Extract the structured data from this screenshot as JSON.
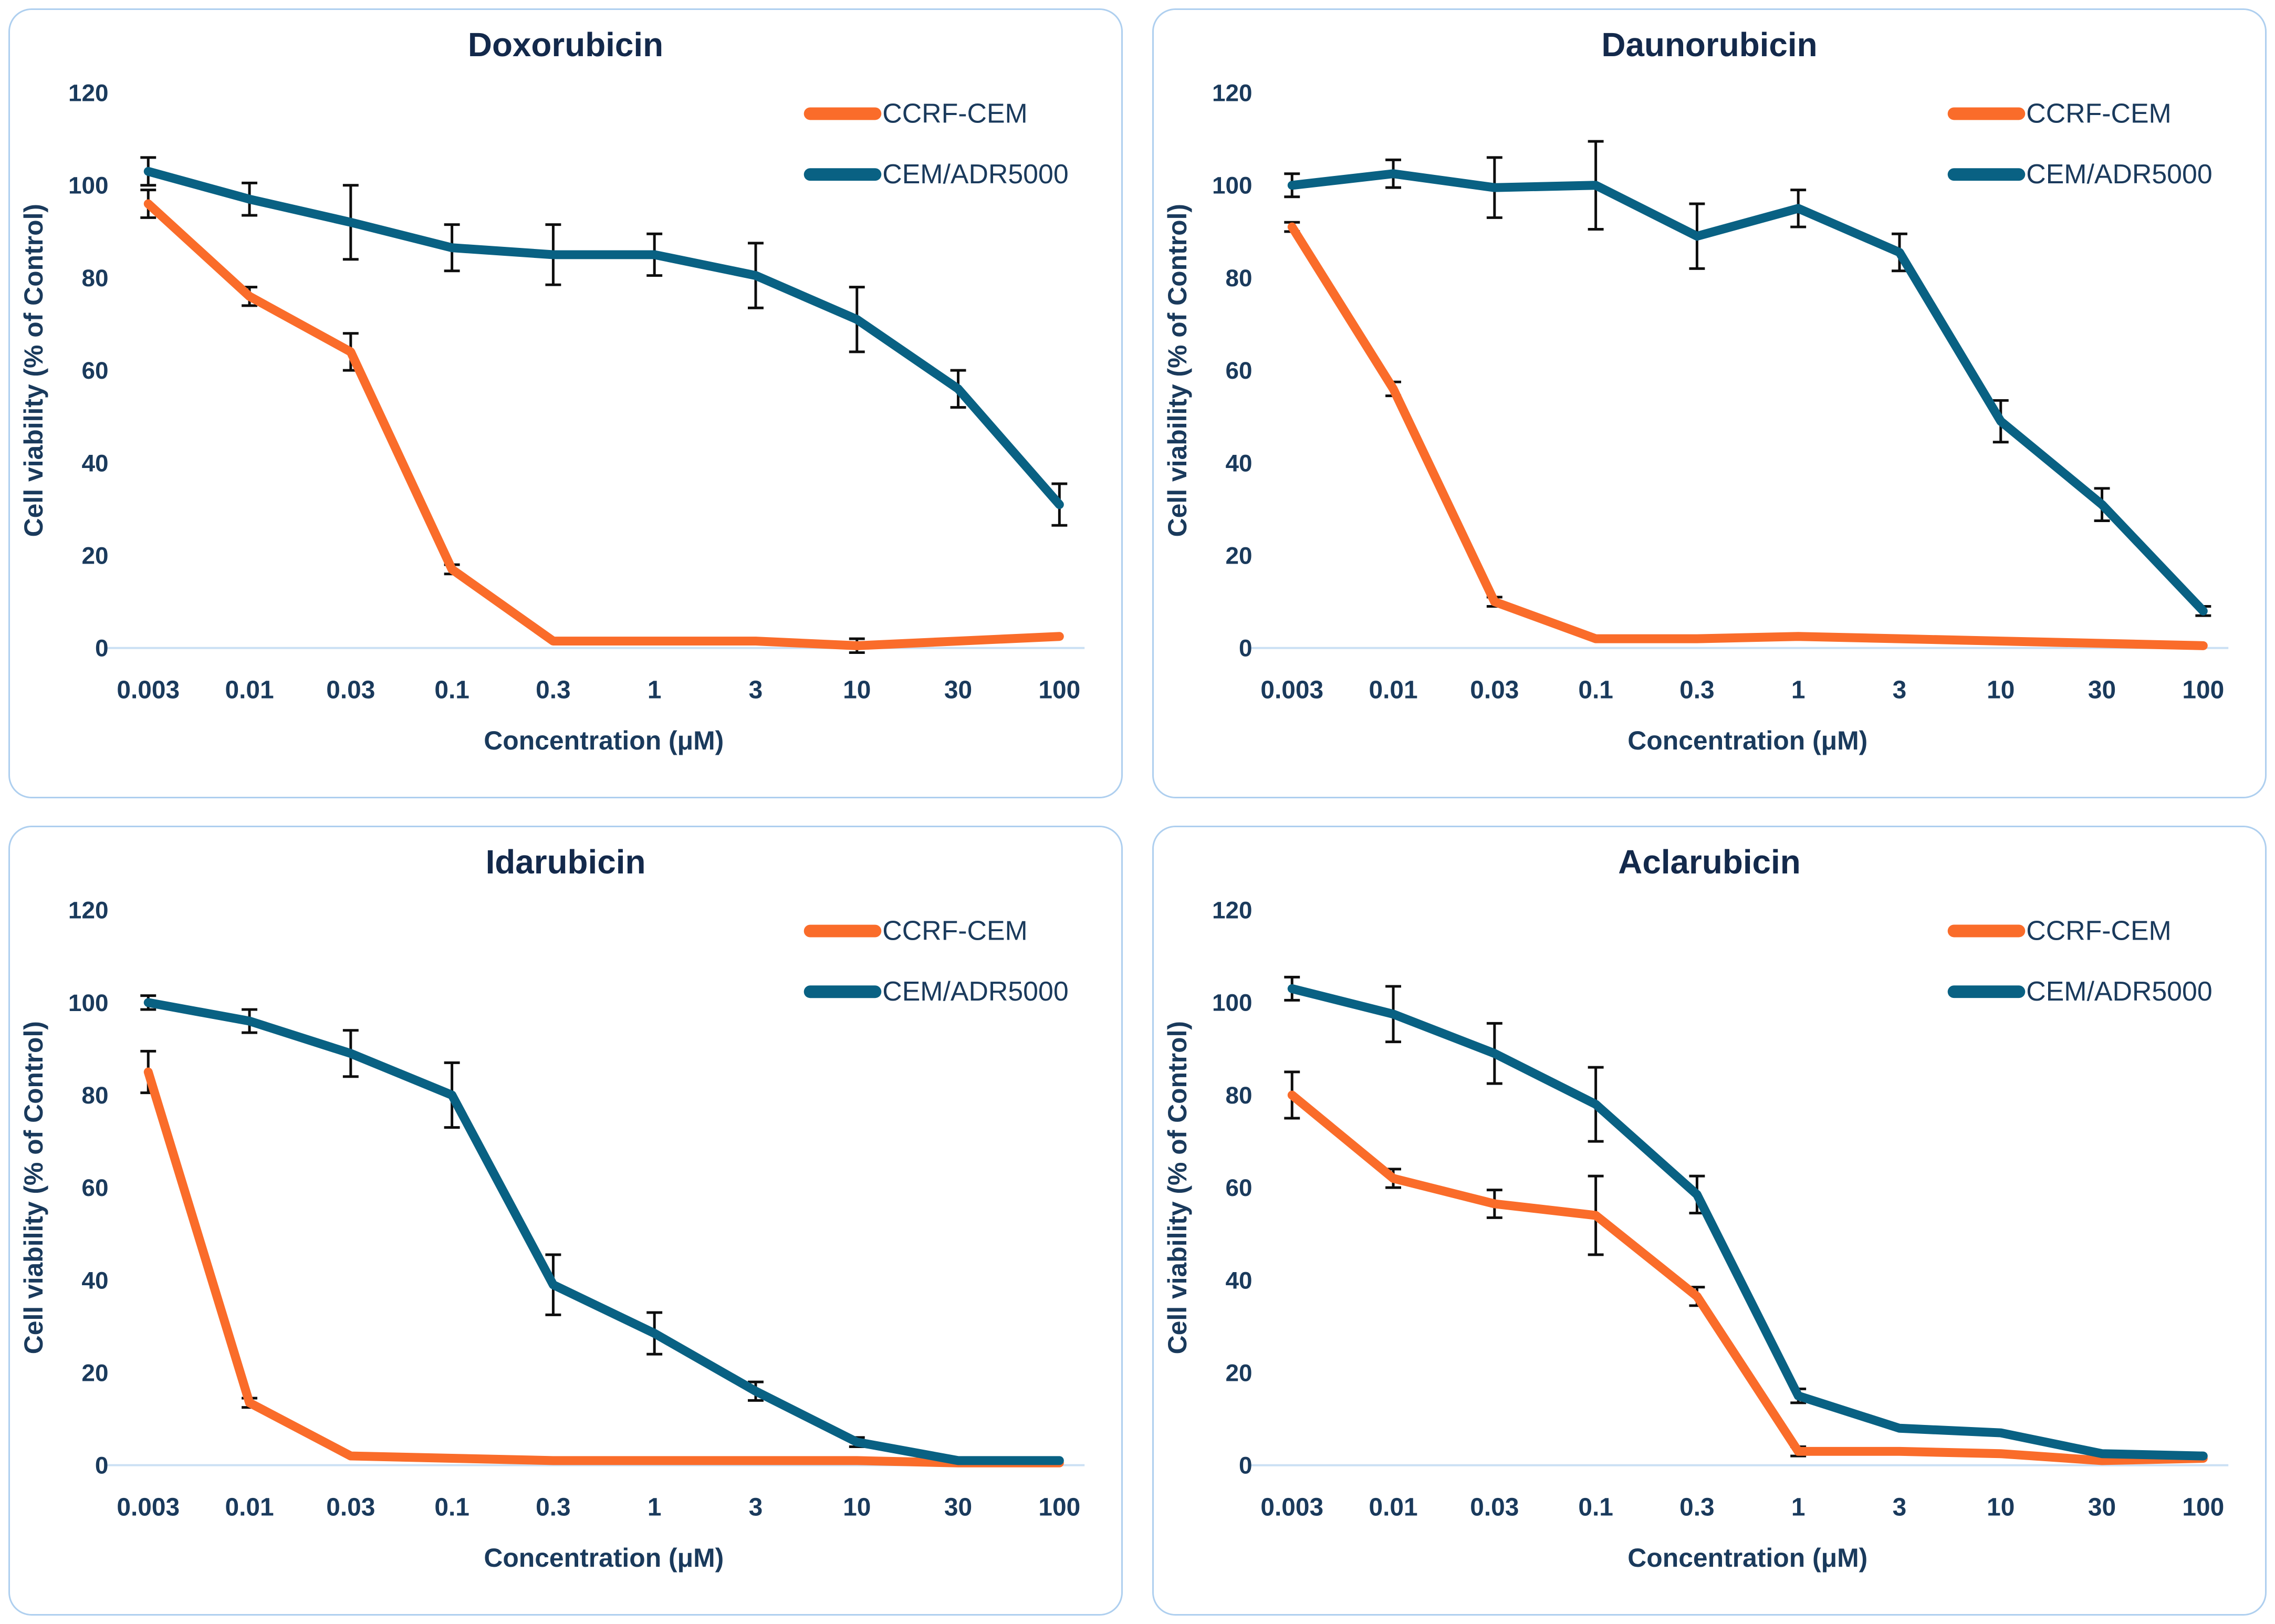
{
  "style": {
    "page_background": "#FFFFFF",
    "panel_background": "#FFFFFF",
    "panel_border_color": "#AECFEF",
    "text_color": "#1A3A5C",
    "title_color": "#13294B",
    "baseline_color": "#CBE0F4",
    "error_color": "#0D0D0D",
    "ccrf_color": "#FA6C2A",
    "adr_color": "#096183"
  },
  "chart_data": [
    {
      "type": "line",
      "title": "Doxorubicin",
      "xlabel": "Concentration (μM)",
      "ylabel": "Cell viability (% of Control)",
      "x_scale": "log-categorical",
      "x_categories": [
        "0.003",
        "0.01",
        "0.03",
        "0.1",
        "0.3",
        "1",
        "3",
        "10",
        "30",
        "100"
      ],
      "ylim": [
        0,
        120
      ],
      "y_ticks": [
        0,
        20,
        40,
        60,
        80,
        100,
        120
      ],
      "grid": false,
      "legend_position": "top-right",
      "series": [
        {
          "name": "CCRF-CEM",
          "color": "#FA6C2A",
          "values": [
            96,
            76,
            64,
            17,
            1.5,
            1.5,
            1.5,
            0.5,
            1.5,
            2.5
          ],
          "errors": [
            3,
            2,
            4,
            1,
            0,
            0,
            0,
            1.5,
            0,
            0
          ]
        },
        {
          "name": "CEM/ADR5000",
          "color": "#096183",
          "values": [
            103,
            97,
            92,
            86.5,
            85,
            85,
            80.5,
            71,
            56,
            31
          ],
          "errors": [
            3,
            3.5,
            8,
            5,
            6.5,
            4.5,
            7,
            7,
            4,
            4.5
          ]
        }
      ]
    },
    {
      "type": "line",
      "title": "Daunorubicin",
      "xlabel": "Concentration (μM)",
      "ylabel": "Cell viability (% of Control)",
      "x_scale": "log-categorical",
      "x_categories": [
        "0.003",
        "0.01",
        "0.03",
        "0.1",
        "0.3",
        "1",
        "3",
        "10",
        "30",
        "100"
      ],
      "ylim": [
        0,
        120
      ],
      "y_ticks": [
        0,
        20,
        40,
        60,
        80,
        100,
        120
      ],
      "grid": false,
      "legend_position": "top-right",
      "series": [
        {
          "name": "CCRF-CEM",
          "color": "#FA6C2A",
          "values": [
            91,
            56,
            10,
            2,
            2,
            2.5,
            2,
            1.5,
            1,
            0.5
          ],
          "errors": [
            1,
            1.5,
            1,
            0,
            0,
            0,
            0,
            0,
            0,
            0
          ]
        },
        {
          "name": "CEM/ADR5000",
          "color": "#096183",
          "values": [
            100,
            102.5,
            99.5,
            100,
            89,
            95,
            85.5,
            49,
            31,
            8
          ],
          "errors": [
            2.5,
            3,
            6.5,
            9.5,
            7,
            4,
            4,
            4.5,
            3.5,
            1
          ]
        }
      ]
    },
    {
      "type": "line",
      "title": "Idarubicin",
      "xlabel": "Concentration (μM)",
      "ylabel": "Cell viability (% of Control)",
      "x_scale": "log-categorical",
      "x_categories": [
        "0.003",
        "0.01",
        "0.03",
        "0.1",
        "0.3",
        "1",
        "3",
        "10",
        "30",
        "100"
      ],
      "ylim": [
        0,
        120
      ],
      "y_ticks": [
        0,
        20,
        40,
        60,
        80,
        100,
        120
      ],
      "grid": false,
      "legend_position": "top-right",
      "series": [
        {
          "name": "CCRF-CEM",
          "color": "#FA6C2A",
          "values": [
            85,
            13.5,
            2,
            1.5,
            1,
            1,
            1,
            1,
            0.5,
            0.5
          ],
          "errors": [
            4.5,
            1,
            0,
            0,
            0,
            0,
            0,
            0,
            0,
            0
          ]
        },
        {
          "name": "CEM/ADR5000",
          "color": "#096183",
          "values": [
            100,
            96,
            89,
            80,
            39,
            28.5,
            16,
            5,
            1,
            1
          ],
          "errors": [
            1.5,
            2.5,
            5,
            7,
            6.5,
            4.5,
            2,
            1,
            0,
            0
          ]
        }
      ]
    },
    {
      "type": "line",
      "title": "Aclarubicin",
      "xlabel": "Concentration (μM)",
      "ylabel": "Cell viability (% of Control)",
      "x_scale": "log-categorical",
      "x_categories": [
        "0.003",
        "0.01",
        "0.03",
        "0.1",
        "0.3",
        "1",
        "3",
        "10",
        "30",
        "100"
      ],
      "ylim": [
        0,
        120
      ],
      "y_ticks": [
        0,
        20,
        40,
        60,
        80,
        100,
        120
      ],
      "grid": false,
      "legend_position": "top-right",
      "series": [
        {
          "name": "CCRF-CEM",
          "color": "#FA6C2A",
          "values": [
            80,
            62,
            56.5,
            54,
            36.5,
            3,
            3,
            2.5,
            1,
            1.5
          ],
          "errors": [
            5,
            2,
            3,
            8.5,
            2,
            1,
            0,
            0,
            0,
            0
          ]
        },
        {
          "name": "CEM/ADR5000",
          "color": "#096183",
          "values": [
            103,
            97.5,
            89,
            78,
            58.5,
            15,
            8,
            7,
            2.5,
            2
          ],
          "errors": [
            2.5,
            6,
            6.5,
            8,
            4,
            1.5,
            0,
            0,
            0,
            0
          ]
        }
      ]
    }
  ]
}
